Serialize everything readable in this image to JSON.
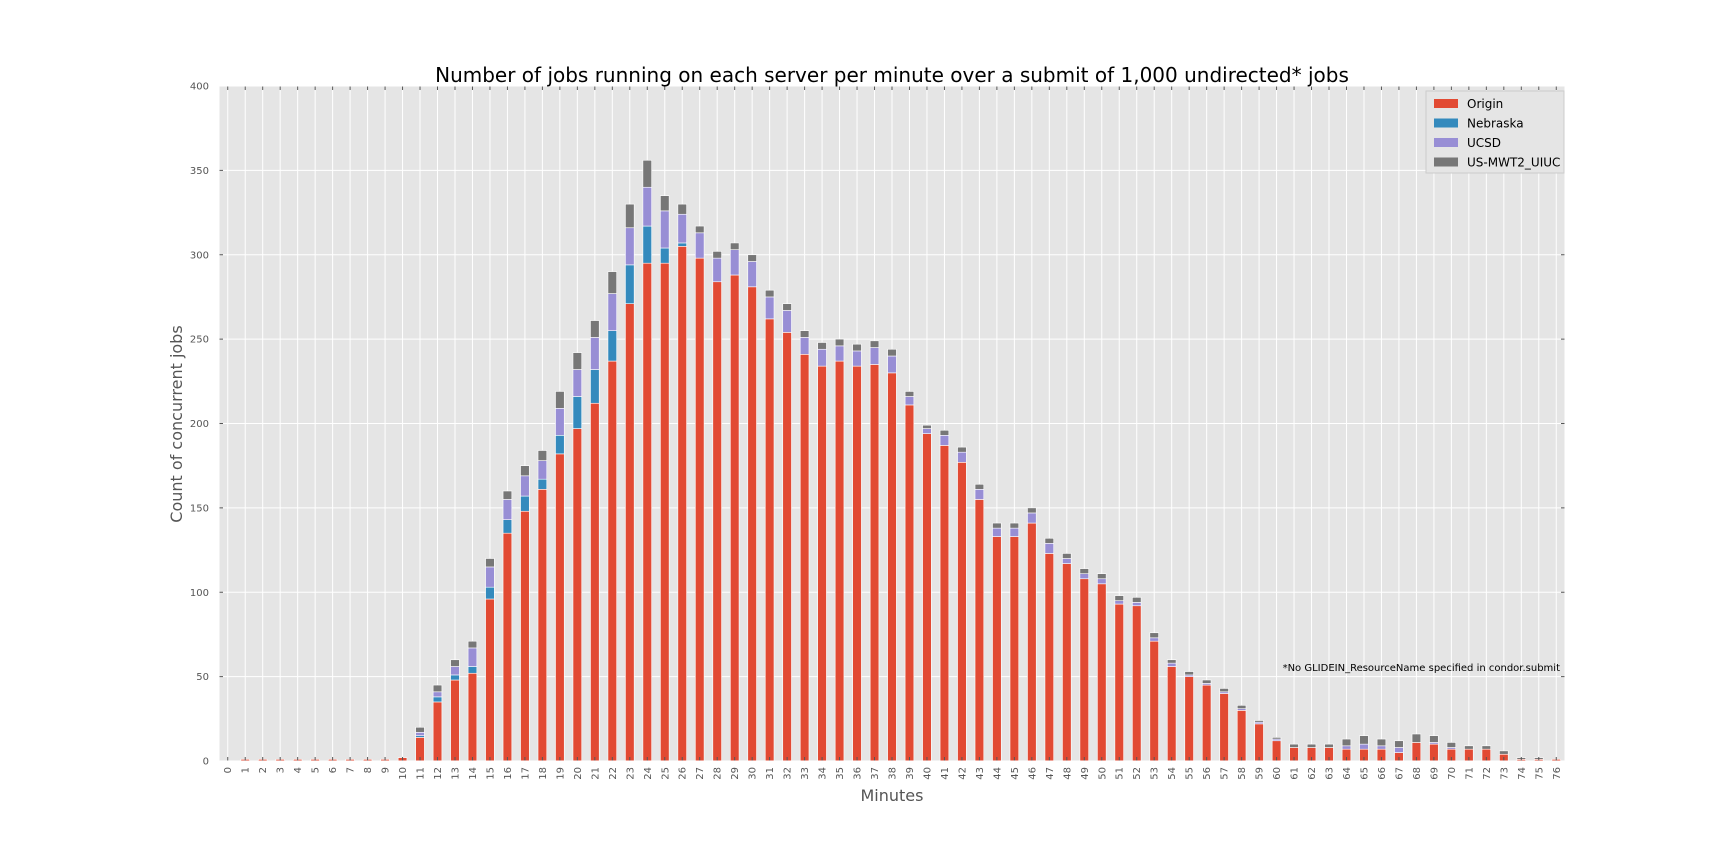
{
  "chart_data": {
    "type": "bar",
    "stacked": true,
    "title": "Number of jobs running on each server per minute over a submit of 1,000 undirected* jobs",
    "xlabel": "Minutes",
    "ylabel": "Count of concurrent jobs",
    "ylim": [
      0,
      400
    ],
    "yticks": [
      "0",
      "50",
      "100",
      "150",
      "200",
      "250",
      "300",
      "350",
      "400"
    ],
    "grid": true,
    "legend_position": "top-right",
    "annotation": "*No GLIDEIN_ResourceName specified in condor.submit",
    "categories": [
      "0",
      "1",
      "2",
      "3",
      "4",
      "5",
      "6",
      "7",
      "8",
      "9",
      "10",
      "11",
      "12",
      "13",
      "14",
      "15",
      "16",
      "17",
      "18",
      "19",
      "20",
      "21",
      "22",
      "23",
      "24",
      "25",
      "26",
      "27",
      "28",
      "29",
      "30",
      "31",
      "32",
      "33",
      "34",
      "35",
      "36",
      "37",
      "38",
      "39",
      "40",
      "41",
      "42",
      "43",
      "44",
      "45",
      "46",
      "47",
      "48",
      "49",
      "50",
      "51",
      "52",
      "53",
      "54",
      "55",
      "56",
      "57",
      "58",
      "59",
      "60",
      "61",
      "62",
      "63",
      "64",
      "65",
      "66",
      "67",
      "68",
      "69",
      "70",
      "71",
      "72",
      "73",
      "74",
      "75",
      "76"
    ],
    "series": [
      {
        "name": "Origin",
        "color": "#E24A33",
        "values": [
          0,
          1,
          1,
          1,
          1,
          1,
          1,
          1,
          1,
          1,
          2,
          14,
          35,
          48,
          52,
          96,
          135,
          148,
          161,
          182,
          197,
          212,
          237,
          271,
          295,
          295,
          305,
          298,
          284,
          288,
          281,
          262,
          254,
          241,
          234,
          237,
          234,
          235,
          230,
          211,
          194,
          187,
          177,
          155,
          133,
          133,
          141,
          123,
          117,
          108,
          105,
          93,
          92,
          71,
          56,
          50,
          45,
          40,
          30,
          22,
          12,
          8,
          8,
          8,
          7,
          7,
          7,
          5,
          11,
          10,
          7,
          7,
          7,
          4,
          1,
          1,
          1
        ]
      },
      {
        "name": "Nebraska",
        "color": "#348ABD",
        "values": [
          0,
          0,
          0,
          0,
          0,
          0,
          0,
          0,
          0,
          0,
          0,
          1,
          3,
          3,
          4,
          7,
          8,
          9,
          6,
          11,
          19,
          20,
          18,
          23,
          22,
          9,
          2,
          0,
          0,
          0,
          0,
          0,
          0,
          0,
          0,
          0,
          0,
          0,
          0,
          0,
          0,
          0,
          0,
          0,
          0,
          0,
          0,
          0,
          0,
          0,
          0,
          0,
          0,
          0,
          0,
          0,
          0,
          0,
          0,
          0,
          0,
          0,
          0,
          0,
          0,
          0,
          0,
          0,
          0,
          0,
          0,
          0,
          0,
          0,
          0,
          0,
          0
        ]
      },
      {
        "name": "UCSD",
        "color": "#988ED5",
        "values": [
          0,
          0,
          0,
          0,
          0,
          0,
          0,
          0,
          0,
          0,
          0,
          2,
          3,
          5,
          11,
          12,
          12,
          12,
          11,
          16,
          16,
          19,
          22,
          22,
          23,
          22,
          17,
          15,
          14,
          15,
          15,
          13,
          13,
          10,
          10,
          9,
          9,
          10,
          10,
          5,
          3,
          6,
          6,
          6,
          5,
          5,
          6,
          6,
          3,
          3,
          3,
          2,
          2,
          2,
          2,
          1,
          1,
          1,
          1,
          1,
          1,
          0,
          0,
          0,
          2,
          3,
          2,
          3,
          0,
          1,
          1,
          0,
          0,
          0,
          0,
          0,
          0
        ]
      },
      {
        "name": "US-MWT2_UIUC",
        "color": "#777777",
        "values": [
          0,
          0,
          0,
          0,
          0,
          0,
          0,
          0,
          0,
          0,
          0,
          3,
          4,
          4,
          4,
          5,
          5,
          6,
          6,
          10,
          10,
          10,
          13,
          14,
          16,
          9,
          6,
          4,
          4,
          4,
          4,
          4,
          4,
          4,
          4,
          4,
          4,
          4,
          4,
          3,
          2,
          3,
          3,
          3,
          3,
          3,
          3,
          3,
          3,
          3,
          3,
          3,
          3,
          3,
          2,
          2,
          2,
          2,
          2,
          1,
          1,
          2,
          2,
          2,
          4,
          5,
          4,
          4,
          5,
          4,
          3,
          2,
          2,
          2,
          1,
          1,
          0
        ]
      }
    ]
  }
}
